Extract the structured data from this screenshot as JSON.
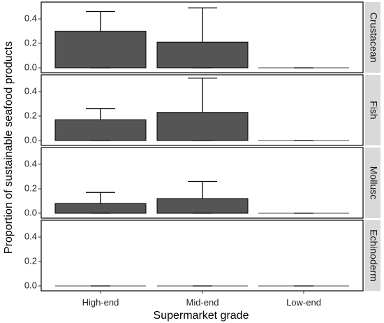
{
  "chart_data": {
    "type": "bar",
    "xlabel": "Supermarket grade",
    "ylabel": "Proportion of sustainable seafood products",
    "categories": [
      "High-end",
      "Mid-end",
      "Low-end"
    ],
    "ylim": [
      0,
      0.52
    ],
    "yticks": [
      0.0,
      0.2,
      0.4
    ],
    "ytick_labels": [
      "0.0",
      "0.2",
      "0.4"
    ],
    "bar_color": "#555555",
    "strip_color": "#d9d9d9",
    "panels": [
      {
        "label": "Crustacean",
        "values": [
          0.3,
          0.21,
          0.0
        ],
        "error_upper": [
          0.46,
          0.49,
          0.0
        ]
      },
      {
        "label": "Fish",
        "values": [
          0.17,
          0.23,
          0.0
        ],
        "error_upper": [
          0.26,
          0.51,
          0.0
        ]
      },
      {
        "label": "Mollusc",
        "values": [
          0.08,
          0.12,
          0.0
        ],
        "error_upper": [
          0.17,
          0.26,
          0.0
        ]
      },
      {
        "label": "Echinoderm",
        "values": [
          0.0,
          0.0,
          0.0
        ],
        "error_upper": [
          0.0,
          0.0,
          0.0
        ]
      }
    ]
  }
}
